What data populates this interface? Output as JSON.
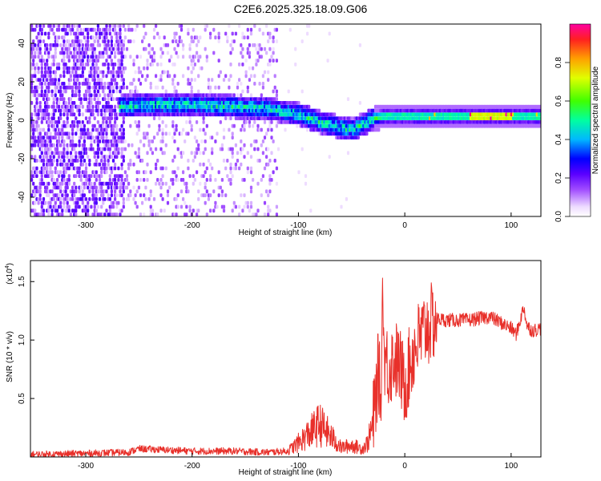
{
  "page": {
    "title": "C2E6.2025.325.18.09.G06"
  },
  "chart_data": [
    {
      "type": "heatmap",
      "title": "C2E6.2025.325.18.09.G06",
      "xlabel": "Height of straight line (km)",
      "ylabel": "Frequency (Hz)",
      "xlim": [
        -352,
        128
      ],
      "ylim": [
        -50,
        50
      ],
      "x_ticks": [
        "-300",
        "-200",
        "-100",
        "0",
        "100"
      ],
      "x_tick_values": [
        -300,
        -200,
        -100,
        0,
        100
      ],
      "y_ticks": [
        "-40",
        "-20",
        "0",
        "20",
        "40"
      ],
      "y_tick_values": [
        -40,
        -20,
        0,
        20,
        40
      ],
      "colorbar": {
        "label": "Normalized spectral amplitude",
        "range": [
          0,
          1
        ],
        "ticks": [
          "0.0",
          "0.2",
          "0.4",
          "0.6",
          "0.8"
        ],
        "tick_values": [
          0.0,
          0.2,
          0.4,
          0.6,
          0.8
        ]
      },
      "ridge": {
        "description": "frequency of strongest spectral band vs height",
        "x": [
          -268,
          -240,
          -200,
          -160,
          -130,
          -100,
          -80,
          -60,
          -50,
          -40,
          -30,
          -20,
          0,
          30,
          60,
          90,
          128
        ],
        "y": [
          6,
          7,
          7,
          6,
          5,
          2,
          -2,
          -5,
          -6,
          -3,
          0,
          1,
          1,
          1,
          1,
          1,
          1
        ]
      },
      "noise_region_x": [
        -352,
        -265
      ],
      "sparse_region_x": [
        -265,
        -120
      ]
    },
    {
      "type": "line",
      "xlabel": "Height of straight line (km)",
      "ylabel": "SNR (10 * v/v)",
      "y_multiplier": "(x10",
      "y_multiplier_exp": "4",
      "xlim": [
        -352,
        128
      ],
      "ylim": [
        0,
        1.68
      ],
      "x_ticks": [
        "-300",
        "-200",
        "-100",
        "0",
        "100"
      ],
      "x_tick_values": [
        -300,
        -200,
        -100,
        0,
        100
      ],
      "y_ticks": [
        "0.5",
        "1.0",
        "1.5"
      ],
      "y_tick_values": [
        0.5,
        1.0,
        1.5
      ],
      "series": [
        {
          "name": "SNR",
          "color": "#e8302a",
          "x": [
            -352,
            -300,
            -260,
            -250,
            -200,
            -160,
            -130,
            -110,
            -100,
            -90,
            -80,
            -70,
            -60,
            -50,
            -40,
            -35,
            -30,
            -27,
            -25,
            -22,
            -21,
            -20,
            -15,
            -10,
            -5,
            0,
            5,
            10,
            20,
            30,
            40,
            60,
            80,
            90,
            100,
            105,
            110,
            112,
            115,
            120,
            128
          ],
          "y": [
            0.02,
            0.03,
            0.04,
            0.07,
            0.05,
            0.05,
            0.04,
            0.05,
            0.12,
            0.2,
            0.28,
            0.18,
            0.08,
            0.1,
            0.07,
            0.12,
            0.28,
            0.55,
            0.75,
            0.5,
            1.6,
            0.9,
            0.75,
            0.85,
            0.78,
            0.6,
            0.8,
            0.95,
            1.1,
            1.18,
            1.17,
            1.17,
            1.2,
            1.15,
            1.1,
            1.05,
            1.22,
            1.28,
            1.12,
            1.08,
            1.1
          ]
        }
      ]
    }
  ]
}
